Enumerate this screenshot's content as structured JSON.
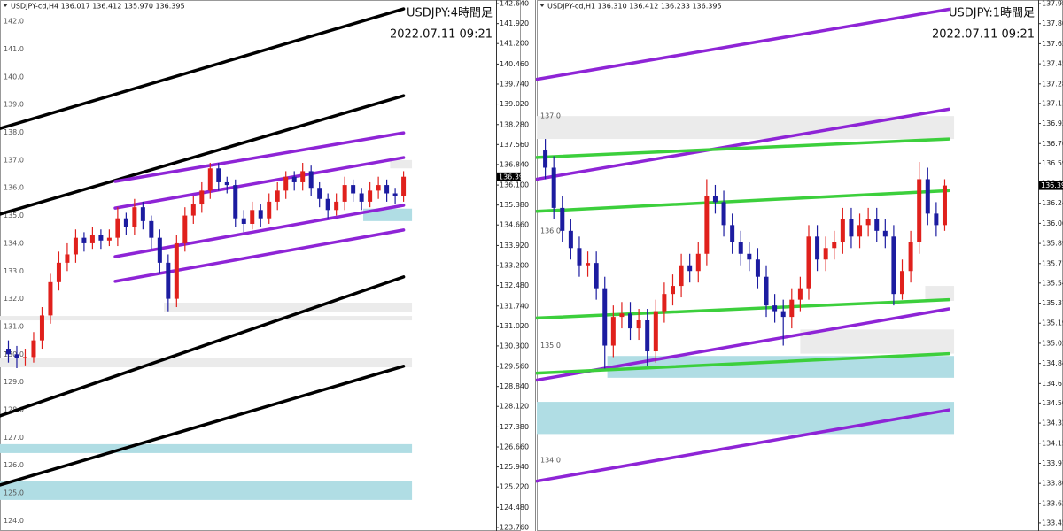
{
  "chart_data": [
    {
      "type": "candlestick",
      "header": "USDJPY-cd,H4 136.017 136.412 135.970 136.395",
      "title": "USDJPY:4時間足",
      "subtitle": "2022.07.11 09:21",
      "up_color": "#e0201c",
      "down_color": "#1c1ca0",
      "xlim": [
        -1,
        58
      ],
      "ylim": [
        123.63,
        142.77
      ],
      "yticks": [
        {
          "value": 142.64,
          "label": "142.640"
        },
        {
          "value": 141.92,
          "label": "141.920"
        },
        {
          "value": 141.2,
          "label": "141.200"
        },
        {
          "value": 140.46,
          "label": "140.460"
        },
        {
          "value": 139.74,
          "label": "139.740"
        },
        {
          "value": 139.02,
          "label": "139.020"
        },
        {
          "value": 138.28,
          "label": "138.280"
        },
        {
          "value": 137.56,
          "label": "137.560"
        },
        {
          "value": 136.84,
          "label": "136.840"
        },
        {
          "value": 136.1,
          "label": "136.100"
        },
        {
          "value": 135.38,
          "label": "135.380"
        },
        {
          "value": 134.66,
          "label": "134.660"
        },
        {
          "value": 133.92,
          "label": "133.920"
        },
        {
          "value": 133.2,
          "label": "133.200"
        },
        {
          "value": 132.48,
          "label": "132.480"
        },
        {
          "value": 131.74,
          "label": "131.740"
        },
        {
          "value": 131.02,
          "label": "131.020"
        },
        {
          "value": 130.3,
          "label": "130.300"
        },
        {
          "value": 129.56,
          "label": "129.560"
        },
        {
          "value": 128.84,
          "label": "128.840"
        },
        {
          "value": 128.12,
          "label": "128.120"
        },
        {
          "value": 127.38,
          "label": "127.380"
        },
        {
          "value": 126.66,
          "label": "126.660"
        },
        {
          "value": 125.94,
          "label": "125.940"
        },
        {
          "value": 125.22,
          "label": "125.220"
        },
        {
          "value": 124.48,
          "label": "124.480"
        },
        {
          "value": 123.76,
          "label": "123.760"
        }
      ],
      "level_labels": [
        {
          "value": 142,
          "label": "142.0"
        },
        {
          "value": 141,
          "label": "141.0"
        },
        {
          "value": 140,
          "label": "140.0"
        },
        {
          "value": 139,
          "label": "139.0"
        },
        {
          "value": 138,
          "label": "138.0"
        },
        {
          "value": 137,
          "label": "137.0"
        },
        {
          "value": 136,
          "label": "136.0"
        },
        {
          "value": 135,
          "label": "135.0"
        },
        {
          "value": 134,
          "label": "134.0"
        },
        {
          "value": 133,
          "label": "133.0"
        },
        {
          "value": 132,
          "label": "132.0"
        },
        {
          "value": 131,
          "label": "131.0"
        },
        {
          "value": 130,
          "label": "130.0"
        },
        {
          "value": 129,
          "label": "129.0"
        },
        {
          "value": 128,
          "label": "128.0"
        },
        {
          "value": 127,
          "label": "127.0"
        },
        {
          "value": 126,
          "label": "126.0"
        },
        {
          "value": 125,
          "label": "125.0"
        },
        {
          "value": 124,
          "label": "124.0"
        }
      ],
      "last_price": 136.395,
      "open": [
        130.2,
        130.0,
        129.85,
        129.9,
        130.5,
        131.4,
        132.6,
        133.3,
        133.6,
        134.2,
        134.0,
        134.3,
        134.1,
        134.2,
        134.9,
        134.6,
        135.3,
        134.8,
        134.2,
        133.3,
        132.0,
        134.0,
        135.0,
        135.4,
        135.9,
        136.7,
        136.2,
        136.1,
        134.9,
        134.7,
        135.2,
        134.9,
        135.5,
        135.9,
        136.4,
        136.2,
        136.6,
        136.0,
        135.6,
        135.2,
        135.5,
        136.1,
        135.8,
        135.5,
        135.9,
        136.1,
        135.8,
        135.7
      ],
      "high": [
        130.5,
        130.3,
        130.2,
        130.8,
        131.7,
        132.9,
        133.7,
        134.0,
        134.5,
        134.4,
        134.6,
        134.5,
        134.5,
        135.3,
        135.1,
        135.6,
        135.5,
        135.0,
        134.5,
        133.6,
        134.3,
        135.3,
        135.7,
        136.2,
        136.9,
        136.9,
        136.4,
        136.3,
        135.2,
        135.5,
        135.4,
        135.8,
        136.2,
        136.6,
        136.6,
        136.9,
        136.8,
        136.2,
        135.8,
        135.8,
        136.4,
        136.3,
        136.0,
        136.2,
        136.4,
        136.3,
        136.0,
        136.6
      ],
      "low": [
        129.7,
        129.5,
        129.6,
        129.7,
        130.2,
        131.1,
        132.3,
        133.0,
        133.3,
        133.7,
        133.8,
        133.8,
        133.9,
        133.9,
        134.3,
        134.3,
        134.5,
        133.8,
        132.9,
        131.55,
        131.7,
        133.7,
        134.7,
        135.1,
        135.6,
        135.9,
        135.8,
        134.6,
        134.4,
        134.5,
        134.6,
        134.7,
        135.2,
        135.6,
        135.9,
        135.9,
        135.7,
        135.3,
        134.9,
        135.0,
        135.2,
        135.5,
        135.2,
        135.3,
        135.6,
        135.5,
        135.4,
        135.5
      ],
      "close": [
        130.0,
        129.85,
        129.9,
        130.5,
        131.4,
        132.6,
        133.3,
        133.6,
        134.2,
        134.0,
        134.3,
        134.1,
        134.2,
        134.9,
        134.6,
        135.3,
        134.8,
        134.2,
        133.3,
        132.0,
        134.0,
        135.0,
        135.4,
        135.9,
        136.7,
        136.2,
        136.1,
        134.9,
        134.7,
        135.2,
        134.9,
        135.5,
        135.9,
        136.4,
        136.2,
        136.6,
        136.0,
        135.6,
        135.2,
        135.5,
        136.1,
        135.8,
        135.5,
        135.9,
        136.1,
        135.8,
        135.7,
        136.4
      ],
      "zones": [
        {
          "color": "#ebebeb",
          "x": [
            45.4,
            48
          ],
          "y": [
            137.0,
            136.7
          ]
        },
        {
          "color": "#b0dde4",
          "x": [
            42.2,
            48
          ],
          "y": [
            135.25,
            134.8
          ]
        },
        {
          "color": "#ebebeb",
          "x": [
            18.5,
            48
          ],
          "y": [
            131.86,
            131.54
          ]
        },
        {
          "color": "#ebebeb",
          "x": [
            -1,
            48
          ],
          "y": [
            131.38,
            131.22
          ]
        },
        {
          "color": "#ebebeb",
          "x": [
            -1,
            48
          ],
          "y": [
            129.85,
            129.53
          ]
        },
        {
          "color": "#b0dde4",
          "x": [
            -1,
            48
          ],
          "y": [
            126.76,
            126.44
          ]
        },
        {
          "color": "#b0dde4",
          "x": [
            -1,
            48
          ],
          "y": [
            125.42,
            124.75
          ]
        }
      ],
      "trend_lines": [
        {
          "color": "#000000",
          "x": [
            -1,
            47
          ],
          "y": [
            138.14,
            142.45
          ]
        },
        {
          "color": "#000000",
          "x": [
            -1,
            47
          ],
          "y": [
            135.05,
            139.32
          ]
        },
        {
          "color": "#000000",
          "x": [
            -1,
            47
          ],
          "y": [
            127.78,
            132.79
          ]
        },
        {
          "color": "#000000",
          "x": [
            -1,
            47
          ],
          "y": [
            125.29,
            129.57
          ]
        },
        {
          "color": "#8e24d6",
          "x": [
            12.7,
            47
          ],
          "y": [
            136.23,
            137.98
          ]
        },
        {
          "color": "#8e24d6",
          "x": [
            12.7,
            47
          ],
          "y": [
            135.27,
            137.09
          ]
        },
        {
          "color": "#8e24d6",
          "x": [
            12.7,
            47
          ],
          "y": [
            133.52,
            135.37
          ]
        },
        {
          "color": "#8e24d6",
          "x": [
            12.7,
            47
          ],
          "y": [
            132.63,
            134.48
          ]
        }
      ]
    },
    {
      "type": "candlestick",
      "header": "USDJPY-cd,H1 136.310 136.412 136.233 136.395",
      "title": "USDJPY:1時間足",
      "subtitle": "2022.07.11 09:21",
      "up_color": "#e0201c",
      "down_color": "#1c1ca0",
      "xlim": [
        -1,
        58
      ],
      "ylim": [
        133.385,
        138.011
      ],
      "yticks": [
        {
          "value": 137.98,
          "label": "137.980"
        },
        137.805,
        {
          "value": 137.63,
          "label": "137.630"
        },
        137.455,
        {
          "value": 137.28,
          "label": "137.280"
        },
        {
          "value": 137.11,
          "label": "137.110"
        },
        136.935,
        {
          "value": 136.76,
          "label": "136.760"
        },
        {
          "value": 136.59,
          "label": "136.590"
        },
        136.415,
        {
          "value": 136.24,
          "label": "136.240"
        },
        136.065,
        {
          "value": 135.89,
          "label": "135.890"
        },
        135.715,
        135.545,
        {
          "value": 135.37,
          "label": "135.370"
        },
        135.195,
        {
          "value": 135.02,
          "label": "135.020"
        },
        134.845,
        {
          "value": 134.67,
          "label": "134.670"
        },
        {
          "value": 134.5,
          "label": "134.500"
        },
        134.325,
        {
          "value": 134.15,
          "label": "134.150"
        },
        133.975,
        {
          "value": 133.8,
          "label": "133.800"
        },
        133.625,
        133.455
      ],
      "level_labels": [
        {
          "value": 137,
          "label": "137.0"
        },
        {
          "value": 136,
          "label": "136.0"
        },
        {
          "value": 135,
          "label": "135.0"
        },
        {
          "value": 134,
          "label": "134.0"
        }
      ],
      "last_price": 136.395,
      "open": [
        136.7,
        136.55,
        136.2,
        136.0,
        135.85,
        135.7,
        135.72,
        135.5,
        135.0,
        135.25,
        135.28,
        135.15,
        135.22,
        134.95,
        135.3,
        135.45,
        135.52,
        135.7,
        135.65,
        135.8,
        136.3,
        136.25,
        136.05,
        135.9,
        135.8,
        135.75,
        135.6,
        135.35,
        135.3,
        135.25,
        135.4,
        135.5,
        135.95,
        135.75,
        135.85,
        135.9,
        136.1,
        135.95,
        136.05,
        136.1,
        136.0,
        135.95,
        135.45,
        135.65,
        135.9,
        136.45,
        136.15,
        136.05
      ],
      "high": [
        136.8,
        136.65,
        136.3,
        136.1,
        135.95,
        135.82,
        135.82,
        135.6,
        135.35,
        135.38,
        135.38,
        135.32,
        135.32,
        135.4,
        135.55,
        135.62,
        135.8,
        135.8,
        135.9,
        136.45,
        136.4,
        136.35,
        136.15,
        136.0,
        135.9,
        135.85,
        135.7,
        135.45,
        135.4,
        135.5,
        135.6,
        136.05,
        136.05,
        135.95,
        136.0,
        136.2,
        136.2,
        136.15,
        136.2,
        136.2,
        136.1,
        136.05,
        135.75,
        136.0,
        136.6,
        136.55,
        136.25,
        136.45
      ],
      "low": [
        136.45,
        136.1,
        135.9,
        135.75,
        135.6,
        135.6,
        135.4,
        134.8,
        134.9,
        135.15,
        135.05,
        135.05,
        134.82,
        134.85,
        135.2,
        135.35,
        135.42,
        135.55,
        135.55,
        135.7,
        136.15,
        135.95,
        135.8,
        135.7,
        135.65,
        135.5,
        135.25,
        135.2,
        135.0,
        135.15,
        135.3,
        135.4,
        135.65,
        135.65,
        135.75,
        135.8,
        135.85,
        135.85,
        135.95,
        135.9,
        135.85,
        135.35,
        135.4,
        135.55,
        135.8,
        136.05,
        135.95,
        136.0
      ],
      "close": [
        136.55,
        136.2,
        136.0,
        135.85,
        135.7,
        135.72,
        135.5,
        135.0,
        135.25,
        135.28,
        135.15,
        135.22,
        134.95,
        135.3,
        135.45,
        135.52,
        135.7,
        135.65,
        135.8,
        136.3,
        136.25,
        136.05,
        135.9,
        135.8,
        135.75,
        135.6,
        135.35,
        135.3,
        135.25,
        135.4,
        135.5,
        135.95,
        135.75,
        135.85,
        135.9,
        136.1,
        135.95,
        136.05,
        136.1,
        136.0,
        135.95,
        135.45,
        135.65,
        135.9,
        136.45,
        136.15,
        136.05,
        136.395
      ],
      "zones": [
        {
          "color": "#ebebeb",
          "x": [
            -1,
            48.1
          ],
          "y": [
            137.0,
            136.8
          ]
        },
        {
          "color": "#ebebeb",
          "x": [
            44.7,
            48.1
          ],
          "y": [
            135.52,
            135.39
          ]
        },
        {
          "color": "#ebebeb",
          "x": [
            30,
            48.1
          ],
          "y": [
            135.14,
            134.93
          ]
        },
        {
          "color": "#b0dde4",
          "x": [
            7.3,
            48.1
          ],
          "y": [
            134.91,
            134.72
          ]
        },
        {
          "color": "#b0dde4",
          "x": [
            -1,
            48.1
          ],
          "y": [
            134.51,
            134.23
          ]
        }
      ],
      "trend_lines": [
        {
          "color": "#8e24d6",
          "x": [
            -1,
            47.5
          ],
          "y": [
            137.32,
            137.93
          ]
        },
        {
          "color": "#8e24d6",
          "x": [
            -1,
            47.5
          ],
          "y": [
            136.45,
            137.06
          ]
        },
        {
          "color": "#8e24d6",
          "x": [
            -1,
            47.5
          ],
          "y": [
            134.7,
            135.32
          ]
        },
        {
          "color": "#8e24d6",
          "x": [
            -1,
            47.5
          ],
          "y": [
            133.82,
            134.44
          ]
        },
        {
          "color": "#3ccf3c",
          "x": [
            -1,
            47.5
          ],
          "y": [
            136.64,
            136.8
          ]
        },
        {
          "color": "#3ccf3c",
          "x": [
            -1,
            47.5
          ],
          "y": [
            136.17,
            136.35
          ]
        },
        {
          "color": "#3ccf3c",
          "x": [
            -1,
            47.5
          ],
          "y": [
            135.24,
            135.4
          ]
        },
        {
          "color": "#3ccf3c",
          "x": [
            -1,
            47.5
          ],
          "y": [
            134.76,
            134.93
          ]
        }
      ]
    }
  ]
}
